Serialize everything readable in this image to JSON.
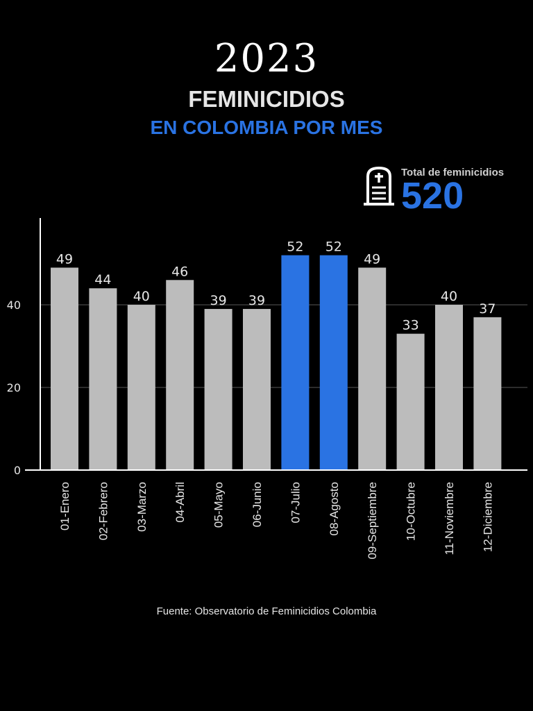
{
  "header": {
    "year": "2023",
    "title_line1": "FEMINICIDIOS",
    "title_line2": "EN COLOMBIA POR MES"
  },
  "total": {
    "label": "Total de feminicidios",
    "value": "520",
    "icon": "tombstone-icon"
  },
  "source": "Fuente: Observatorio de Feminicidios Colombia",
  "colors": {
    "highlight": "#2a73e3",
    "bar": "#bcbcbc",
    "grid": "#3a3a3a",
    "axis": "#ffffff",
    "text": "#e6e6e6"
  },
  "chart_data": {
    "type": "bar",
    "title": "Feminicidios en Colombia por mes 2023",
    "categories": [
      "01-Enero",
      "02-Febrero",
      "03-Marzo",
      "04-Abril",
      "05-Mayo",
      "06-Junio",
      "07-Julio",
      "08-Agosto",
      "09-Septiembre",
      "10-Octubre",
      "11-Noviembre",
      "12-Diciembre"
    ],
    "values": [
      49,
      44,
      40,
      46,
      39,
      39,
      52,
      52,
      49,
      33,
      40,
      37
    ],
    "highlighted": [
      "07-Julio",
      "08-Agosto"
    ],
    "yticks": [
      0,
      20,
      40
    ],
    "ylim": [
      0,
      60
    ],
    "grid": true,
    "xlabel": "",
    "ylabel": ""
  }
}
